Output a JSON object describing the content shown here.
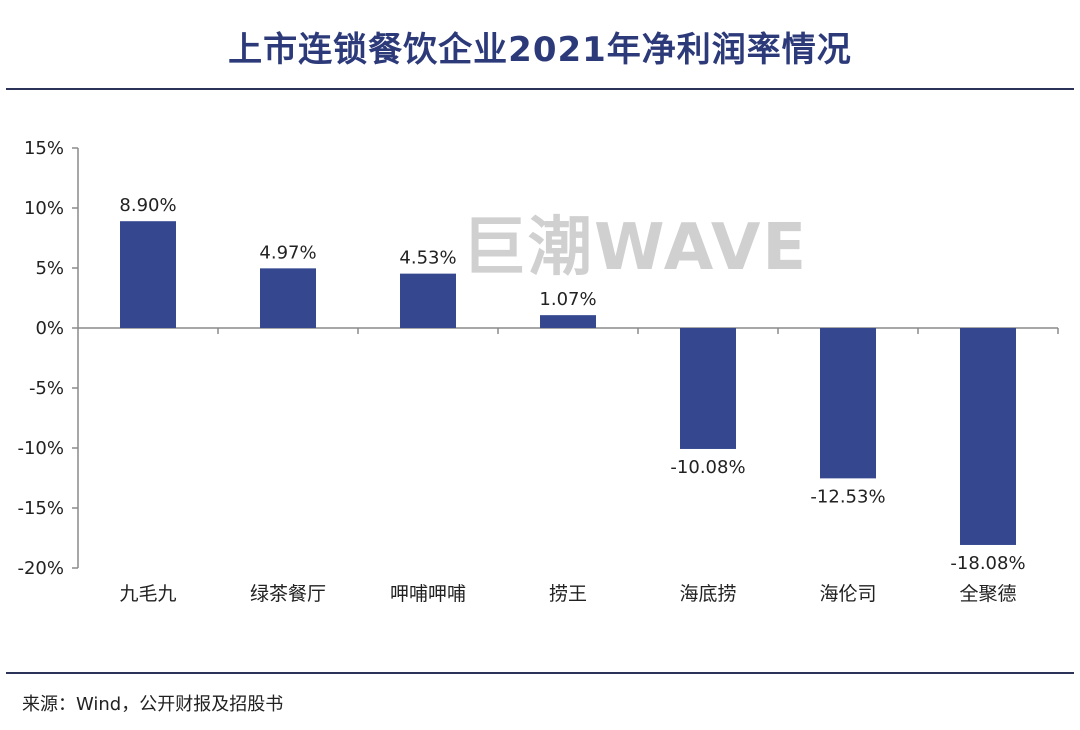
{
  "title": "上市连锁餐饮企业2021年净利润率情况",
  "watermark": "巨潮WAVE",
  "source": "来源：Wind，公开财报及招股书",
  "colors": {
    "bar": "#34478f",
    "title": "#2c3a7a",
    "axis": "#8a8a8a"
  },
  "chart_data": {
    "type": "bar",
    "title": "上市连锁餐饮企业2021年净利润率情况",
    "categories": [
      "九毛九",
      "绿茶餐厅",
      "呷哺呷哺",
      "捞王",
      "海底捞",
      "海伦司",
      "全聚德"
    ],
    "values": [
      8.9,
      4.97,
      4.53,
      1.07,
      -10.08,
      -12.53,
      -18.08
    ],
    "value_labels": [
      "8.90%",
      "4.97%",
      "4.53%",
      "1.07%",
      "-10.08%",
      "-12.53%",
      "-18.08%"
    ],
    "y_ticks": [
      15,
      10,
      5,
      0,
      -5,
      -10,
      -15,
      -20
    ],
    "y_tick_labels": [
      "15%",
      "10%",
      "5%",
      "0%",
      "-5%",
      "-10%",
      "-15%",
      "-20%"
    ],
    "ylim": [
      -20,
      15
    ],
    "xlabel": "",
    "ylabel": "",
    "grid": false
  }
}
